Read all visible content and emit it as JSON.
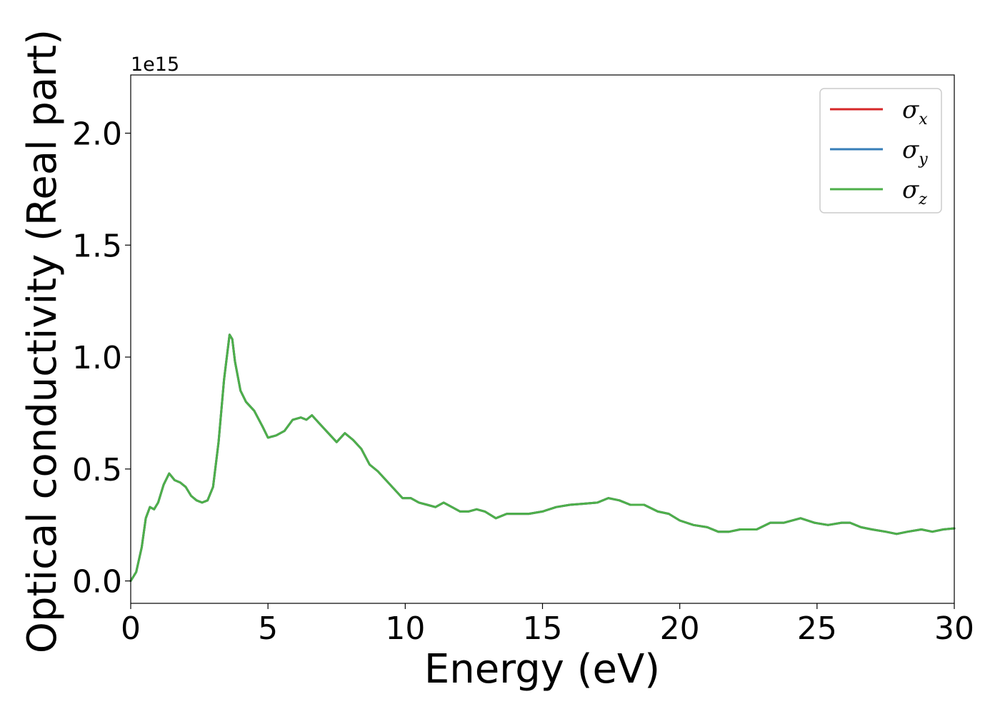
{
  "chart_data": {
    "type": "line",
    "xlabel": "Energy (eV)",
    "ylabel": "Optical conductivity (Real part)",
    "y_offset_label": "1e15",
    "xlim": [
      0,
      30
    ],
    "ylim": [
      -0.1,
      2.26
    ],
    "xticks": [
      0,
      5,
      10,
      15,
      20,
      25,
      30
    ],
    "xtick_labels": [
      "0",
      "5",
      "10",
      "15",
      "20",
      "25",
      "30"
    ],
    "yticks": [
      0.0,
      0.5,
      1.0,
      1.5,
      2.0
    ],
    "ytick_labels": [
      "0.0",
      "0.5",
      "1.0",
      "1.5",
      "2.0"
    ],
    "grid": false,
    "legend_position": "top-right",
    "x": [
      0,
      0.2,
      0.4,
      0.55,
      0.7,
      0.85,
      1.0,
      1.2,
      1.4,
      1.6,
      1.8,
      2.0,
      2.2,
      2.4,
      2.6,
      2.8,
      3.0,
      3.2,
      3.4,
      3.6,
      3.7,
      3.8,
      4.0,
      4.2,
      4.5,
      4.8,
      5.0,
      5.3,
      5.6,
      5.9,
      6.2,
      6.4,
      6.6,
      6.9,
      7.2,
      7.5,
      7.8,
      8.1,
      8.4,
      8.7,
      9.0,
      9.3,
      9.6,
      9.9,
      10.2,
      10.5,
      10.8,
      11.1,
      11.4,
      11.7,
      12.0,
      12.3,
      12.6,
      12.9,
      13.3,
      13.7,
      14.0,
      14.5,
      15.0,
      15.5,
      16.0,
      16.5,
      17.0,
      17.4,
      17.8,
      18.2,
      18.7,
      19.2,
      19.6,
      20.0,
      20.5,
      21.0,
      21.4,
      21.8,
      22.2,
      22.8,
      23.3,
      23.8,
      24.4,
      24.9,
      25.4,
      25.9,
      26.2,
      26.6,
      27.0,
      27.5,
      27.9,
      28.3,
      28.8,
      29.2,
      29.6,
      30.0
    ],
    "series": [
      {
        "name": "σx",
        "symbol": "σ",
        "subscript": "x",
        "color": "#d62728",
        "values": [
          0.0,
          0.04,
          0.15,
          0.28,
          0.33,
          0.32,
          0.35,
          0.43,
          0.48,
          0.45,
          0.44,
          0.42,
          0.38,
          0.36,
          0.35,
          0.36,
          0.42,
          0.62,
          0.9,
          1.1,
          1.08,
          0.98,
          0.85,
          0.8,
          0.76,
          0.69,
          0.64,
          0.65,
          0.67,
          0.72,
          0.73,
          0.72,
          0.74,
          0.7,
          0.66,
          0.62,
          0.66,
          0.63,
          0.59,
          0.52,
          0.49,
          0.45,
          0.41,
          0.37,
          0.37,
          0.35,
          0.34,
          0.33,
          0.35,
          0.33,
          0.31,
          0.31,
          0.32,
          0.31,
          0.28,
          0.3,
          0.3,
          0.3,
          0.31,
          0.33,
          0.34,
          0.345,
          0.35,
          0.37,
          0.36,
          0.34,
          0.34,
          0.31,
          0.3,
          0.27,
          0.25,
          0.24,
          0.22,
          0.22,
          0.23,
          0.23,
          0.26,
          0.26,
          0.28,
          0.26,
          0.25,
          0.26,
          0.26,
          0.24,
          0.23,
          0.22,
          0.21,
          0.22,
          0.23,
          0.22,
          0.23,
          0.235
        ]
      },
      {
        "name": "σy",
        "symbol": "σ",
        "subscript": "y",
        "color": "#377eb8",
        "values": [
          0.0,
          0.04,
          0.15,
          0.28,
          0.33,
          0.32,
          0.35,
          0.43,
          0.48,
          0.45,
          0.44,
          0.42,
          0.38,
          0.36,
          0.35,
          0.36,
          0.42,
          0.62,
          0.9,
          1.1,
          1.08,
          0.98,
          0.85,
          0.8,
          0.76,
          0.69,
          0.64,
          0.65,
          0.67,
          0.72,
          0.73,
          0.72,
          0.74,
          0.7,
          0.66,
          0.62,
          0.66,
          0.63,
          0.59,
          0.52,
          0.49,
          0.45,
          0.41,
          0.37,
          0.37,
          0.35,
          0.34,
          0.33,
          0.35,
          0.33,
          0.31,
          0.31,
          0.32,
          0.31,
          0.28,
          0.3,
          0.3,
          0.3,
          0.31,
          0.33,
          0.34,
          0.345,
          0.35,
          0.37,
          0.36,
          0.34,
          0.34,
          0.31,
          0.3,
          0.27,
          0.25,
          0.24,
          0.22,
          0.22,
          0.23,
          0.23,
          0.26,
          0.26,
          0.28,
          0.26,
          0.25,
          0.26,
          0.26,
          0.24,
          0.23,
          0.22,
          0.21,
          0.22,
          0.23,
          0.22,
          0.23,
          0.235
        ]
      },
      {
        "name": "σz",
        "symbol": "σ",
        "subscript": "z",
        "color": "#4daf4a",
        "values": [
          0.0,
          0.04,
          0.15,
          0.28,
          0.33,
          0.32,
          0.35,
          0.43,
          0.48,
          0.45,
          0.44,
          0.42,
          0.38,
          0.36,
          0.35,
          0.36,
          0.42,
          0.62,
          0.9,
          1.1,
          1.08,
          0.98,
          0.85,
          0.8,
          0.76,
          0.69,
          0.64,
          0.65,
          0.67,
          0.72,
          0.73,
          0.72,
          0.74,
          0.7,
          0.66,
          0.62,
          0.66,
          0.63,
          0.59,
          0.52,
          0.49,
          0.45,
          0.41,
          0.37,
          0.37,
          0.35,
          0.34,
          0.33,
          0.35,
          0.33,
          0.31,
          0.31,
          0.32,
          0.31,
          0.28,
          0.3,
          0.3,
          0.3,
          0.31,
          0.33,
          0.34,
          0.345,
          0.35,
          0.37,
          0.36,
          0.34,
          0.34,
          0.31,
          0.3,
          0.27,
          0.25,
          0.24,
          0.22,
          0.22,
          0.23,
          0.23,
          0.26,
          0.26,
          0.28,
          0.26,
          0.25,
          0.26,
          0.26,
          0.24,
          0.23,
          0.22,
          0.21,
          0.22,
          0.23,
          0.22,
          0.23,
          0.235
        ]
      }
    ]
  }
}
